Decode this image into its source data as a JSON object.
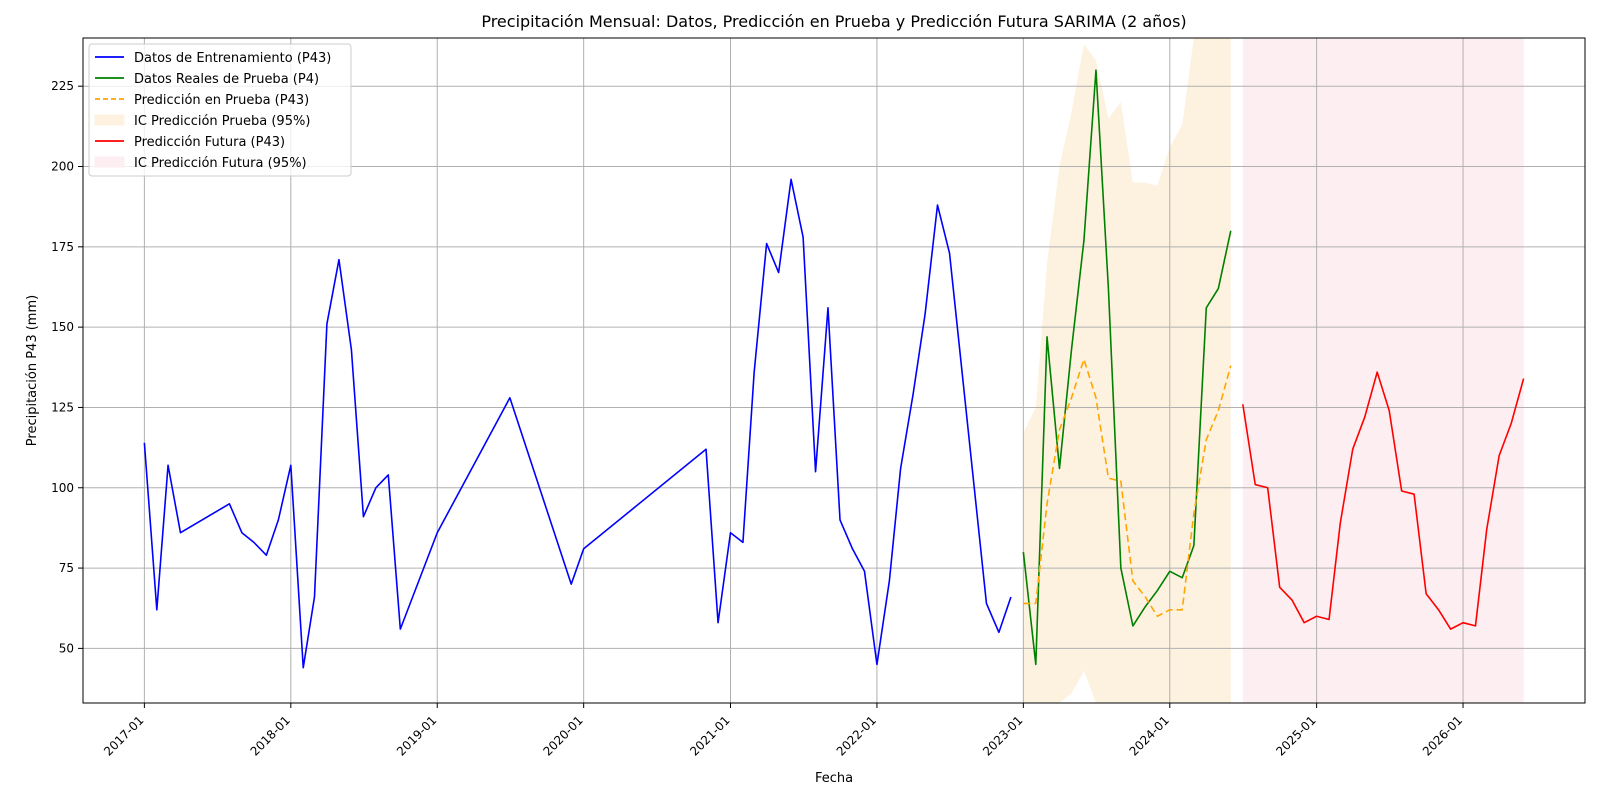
{
  "chart_data": {
    "type": "line",
    "title": "Precipitación Mensual: Datos, Predicción en Prueba y Predicción Futura SARIMA (2 años)",
    "xlabel": "Fecha",
    "ylabel": "Precipitación P43 (mm)",
    "xlim": [
      "2016-08-01",
      "2026-11-01"
    ],
    "ylim": [
      33,
      240
    ],
    "grid": true,
    "legend_position": "top-left",
    "x_ticks": [
      "2017-01",
      "2018-01",
      "2019-01",
      "2020-01",
      "2021-01",
      "2022-01",
      "2023-01",
      "2024-01",
      "2025-01",
      "2026-01"
    ],
    "y_ticks": [
      50,
      75,
      100,
      125,
      150,
      175,
      200,
      225
    ],
    "series": [
      {
        "name": "Datos de Entrenamiento (P43)",
        "kind": "line",
        "color": "#0000ff",
        "dash": "",
        "points": [
          [
            "2017-01",
            114
          ],
          [
            "2017-02",
            62
          ],
          [
            "2017-03",
            107
          ],
          [
            "2017-04",
            86
          ],
          [
            "2017-08",
            95
          ],
          [
            "2017-09",
            86
          ],
          [
            "2017-10",
            83
          ],
          [
            "2017-11",
            79
          ],
          [
            "2017-12",
            90
          ],
          [
            "2018-01",
            107
          ],
          [
            "2018-02",
            44
          ],
          [
            "2018-03",
            66
          ],
          [
            "2018-04",
            151
          ],
          [
            "2018-05",
            171
          ],
          [
            "2018-06",
            143
          ],
          [
            "2018-07",
            91
          ],
          [
            "2018-08",
            100
          ],
          [
            "2018-09",
            104
          ],
          [
            "2018-10",
            56
          ],
          [
            "2019-01",
            86
          ],
          [
            "2019-07",
            128
          ],
          [
            "2019-12",
            70
          ],
          [
            "2020-01",
            81
          ],
          [
            "2020-11",
            112
          ],
          [
            "2020-12",
            58
          ],
          [
            "2021-01",
            86
          ],
          [
            "2021-02",
            83
          ],
          [
            "2021-03",
            136
          ],
          [
            "2021-04",
            176
          ],
          [
            "2021-05",
            167
          ],
          [
            "2021-06",
            196
          ],
          [
            "2021-07",
            178
          ],
          [
            "2021-08",
            105
          ],
          [
            "2021-09",
            156
          ],
          [
            "2021-10",
            90
          ],
          [
            "2021-11",
            81
          ],
          [
            "2021-12",
            74
          ],
          [
            "2022-01",
            45
          ],
          [
            "2022-02",
            71
          ],
          [
            "2022-03",
            106
          ],
          [
            "2022-04",
            129
          ],
          [
            "2022-05",
            154
          ],
          [
            "2022-06",
            188
          ],
          [
            "2022-07",
            173
          ],
          [
            "2022-10",
            64
          ],
          [
            "2022-11",
            55
          ],
          [
            "2022-12",
            66
          ]
        ]
      },
      {
        "name": "Datos Reales de Prueba (P4)",
        "kind": "line",
        "color": "#008000",
        "dash": "",
        "points": [
          [
            "2023-01",
            80
          ],
          [
            "2023-02",
            45
          ],
          [
            "2023-03",
            147
          ],
          [
            "2023-04",
            106
          ],
          [
            "2023-05",
            143
          ],
          [
            "2023-06",
            177
          ],
          [
            "2023-07",
            230
          ],
          [
            "2023-08",
            162
          ],
          [
            "2023-09",
            75
          ],
          [
            "2023-10",
            57
          ],
          [
            "2023-11",
            63
          ],
          [
            "2023-12",
            68
          ],
          [
            "2024-01",
            74
          ],
          [
            "2024-02",
            72
          ],
          [
            "2024-03",
            82
          ],
          [
            "2024-04",
            156
          ],
          [
            "2024-05",
            162
          ],
          [
            "2024-06",
            180
          ]
        ]
      },
      {
        "name": "Predicción en Prueba (P43)",
        "kind": "line",
        "color": "#ffa500",
        "dash": "7,4",
        "points": [
          [
            "2023-01",
            64
          ],
          [
            "2023-02",
            64
          ],
          [
            "2023-03",
            95
          ],
          [
            "2023-04",
            118
          ],
          [
            "2023-05",
            128
          ],
          [
            "2023-06",
            140
          ],
          [
            "2023-07",
            128
          ],
          [
            "2023-08",
            103
          ],
          [
            "2023-09",
            102
          ],
          [
            "2023-10",
            71
          ],
          [
            "2023-11",
            66
          ],
          [
            "2023-12",
            60
          ],
          [
            "2024-01",
            62
          ],
          [
            "2024-02",
            62
          ],
          [
            "2024-03",
            92
          ],
          [
            "2024-04",
            115
          ],
          [
            "2024-05",
            124
          ],
          [
            "2024-06",
            138
          ]
        ]
      },
      {
        "name": "IC Predicción Prueba (95%)",
        "kind": "band",
        "color": "#fdf2e0",
        "upper": [
          [
            "2023-01",
            117
          ],
          [
            "2023-02",
            125
          ],
          [
            "2023-03",
            170
          ],
          [
            "2023-04",
            200
          ],
          [
            "2023-05",
            217
          ],
          [
            "2023-06",
            238
          ],
          [
            "2023-07",
            233
          ],
          [
            "2023-08",
            215
          ],
          [
            "2023-09",
            220
          ],
          [
            "2023-10",
            195
          ],
          [
            "2023-11",
            195
          ],
          [
            "2023-12",
            194
          ],
          [
            "2024-01",
            206
          ],
          [
            "2024-02",
            213
          ],
          [
            "2024-03",
            240
          ],
          [
            "2024-04",
            240
          ],
          [
            "2024-05",
            240
          ],
          [
            "2024-06",
            240
          ]
        ],
        "lower": [
          [
            "2023-01",
            33
          ],
          [
            "2023-02",
            33
          ],
          [
            "2023-03",
            33
          ],
          [
            "2023-04",
            33
          ],
          [
            "2023-05",
            36
          ],
          [
            "2023-06",
            43
          ],
          [
            "2023-07",
            33
          ],
          [
            "2023-08",
            33
          ],
          [
            "2023-09",
            33
          ],
          [
            "2023-10",
            33
          ],
          [
            "2023-11",
            33
          ],
          [
            "2023-12",
            33
          ],
          [
            "2024-01",
            33
          ],
          [
            "2024-02",
            33
          ],
          [
            "2024-03",
            33
          ],
          [
            "2024-04",
            33
          ],
          [
            "2024-05",
            33
          ],
          [
            "2024-06",
            33
          ]
        ]
      },
      {
        "name": "Predicción Futura (P43)",
        "kind": "line",
        "color": "#ff0000",
        "dash": "",
        "points": [
          [
            "2024-07",
            126
          ],
          [
            "2024-08",
            101
          ],
          [
            "2024-09",
            100
          ],
          [
            "2024-10",
            69
          ],
          [
            "2024-11",
            65
          ],
          [
            "2024-12",
            58
          ],
          [
            "2025-01",
            60
          ],
          [
            "2025-02",
            59
          ],
          [
            "2025-03",
            89
          ],
          [
            "2025-04",
            112
          ],
          [
            "2025-05",
            122
          ],
          [
            "2025-06",
            136
          ],
          [
            "2025-07",
            124
          ],
          [
            "2025-08",
            99
          ],
          [
            "2025-09",
            98
          ],
          [
            "2025-10",
            67
          ],
          [
            "2025-11",
            62
          ],
          [
            "2025-12",
            56
          ],
          [
            "2026-01",
            58
          ],
          [
            "2026-02",
            57
          ],
          [
            "2026-03",
            87
          ],
          [
            "2026-04",
            110
          ],
          [
            "2026-05",
            120
          ],
          [
            "2026-06",
            134
          ]
        ]
      },
      {
        "name": "IC Predicción Futura (95%)",
        "kind": "band",
        "color": "#fdeef1",
        "upper": [
          [
            "2024-07",
            240
          ],
          [
            "2026-06",
            240
          ]
        ],
        "lower": [
          [
            "2024-07",
            33
          ],
          [
            "2026-06",
            33
          ]
        ]
      }
    ]
  }
}
